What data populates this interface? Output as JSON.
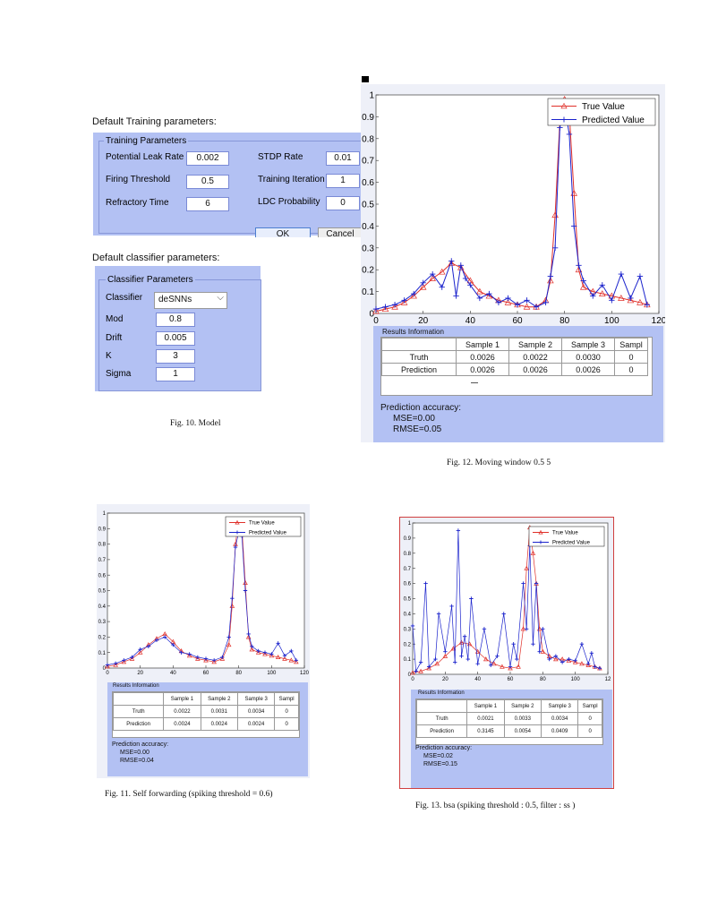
{
  "fig10": {
    "training_header": "Default Training parameters:",
    "training_group": "Training Parameters",
    "fields": [
      {
        "label": "Potential Leak Rate",
        "value": "0.002"
      },
      {
        "label": "Firing Threshold",
        "value": "0.5"
      },
      {
        "label": "Refractory Time",
        "value": "6"
      },
      {
        "label": "STDP Rate",
        "value": "0.01"
      },
      {
        "label": "Training Iteration",
        "value": "1"
      },
      {
        "label": "LDC Probability",
        "value": "0"
      }
    ],
    "ok_label": "OK",
    "cancel_label": "Cancel",
    "classifier_header": "Default classifier parameters:",
    "classifier_group": "Classifier Parameters",
    "classifier_label": "Classifier",
    "classifier_value": "deSNNs",
    "class_fields": [
      {
        "label": "Mod",
        "value": "0.8"
      },
      {
        "label": "Drift",
        "value": "0.005"
      },
      {
        "label": "K",
        "value": "3"
      },
      {
        "label": "Sigma",
        "value": "1"
      }
    ],
    "caption": "Fig. 10.   Model"
  },
  "fig12": {
    "caption": "Fig. 12.   Moving window 0.5 5",
    "results_title": "Results Information",
    "columns": [
      "Sample 1",
      "Sample 2",
      "Sample 3",
      "Sampl"
    ],
    "truth_label": "Truth",
    "prediction_label": "Prediction",
    "truth": [
      "0.0026",
      "0.0022",
      "0.0030",
      "0"
    ],
    "prediction": [
      "0.0026",
      "0.0026",
      "0.0026",
      "0"
    ],
    "accuracy_title": "Prediction accuracy:",
    "mse": "MSE=0.00",
    "rmse": "RMSE=0.05",
    "legend_true": "True Value",
    "legend_pred": "Predicted Value"
  },
  "fig11": {
    "caption": "Fig. 11.   Self forwarding (spiking threshold = 0.6)",
    "results_title": "Results Information",
    "columns": [
      "Sample 1",
      "Sample 2",
      "Sample 3",
      "Sampl"
    ],
    "truth_label": "Truth",
    "prediction_label": "Prediction",
    "truth": [
      "0.0022",
      "0.0031",
      "0.0034",
      "0"
    ],
    "prediction": [
      "0.0024",
      "0.0024",
      "0.0024",
      "0"
    ],
    "accuracy_title": "Prediction accuracy:",
    "mse": "MSE=0.00",
    "rmse": "RMSE=0.04",
    "legend_true": "True Value",
    "legend_pred": "Predicted Value"
  },
  "fig13": {
    "caption": "Fig. 13.   bsa (spiking threshold : 0.5, filter : ss )",
    "results_title": "Results Information",
    "columns": [
      "Sample 1",
      "Sample 2",
      "Sample 3",
      "Sampl"
    ],
    "truth_label": "Truth",
    "prediction_label": "Prediction",
    "truth": [
      "0.0021",
      "0.0033",
      "0.0034",
      "0"
    ],
    "prediction": [
      "0.3145",
      "0.0054",
      "0.0409",
      "0"
    ],
    "accuracy_title": "Prediction accuracy:",
    "mse": "MSE=0.02",
    "rmse": "RMSE=0.15",
    "legend_true": "True Value",
    "legend_pred": "Predicted Value"
  },
  "chart_data": [
    {
      "type": "line",
      "figure": "Fig. 12",
      "xlim": [
        0,
        120
      ],
      "ylim": [
        0,
        1
      ],
      "xticks": [
        "0",
        "20",
        "40",
        "60",
        "80",
        "100",
        "120"
      ],
      "yticks": [
        "0",
        "0.1",
        "0.2",
        "0.3",
        "0.4",
        "0.5",
        "0.6",
        "0.7",
        "0.8",
        "0.9",
        "1"
      ],
      "series": [
        {
          "name": "True Value",
          "color": "#e0302a",
          "marker": "triangle",
          "x": [
            0,
            4,
            8,
            12,
            16,
            20,
            24,
            28,
            32,
            36,
            40,
            44,
            48,
            52,
            56,
            60,
            64,
            68,
            72,
            74,
            76,
            78,
            80,
            82,
            84,
            86,
            88,
            92,
            96,
            100,
            104,
            108,
            112,
            115
          ],
          "y": [
            0.01,
            0.02,
            0.03,
            0.05,
            0.08,
            0.12,
            0.16,
            0.19,
            0.23,
            0.21,
            0.15,
            0.1,
            0.08,
            0.06,
            0.05,
            0.04,
            0.03,
            0.03,
            0.06,
            0.15,
            0.45,
            0.88,
            0.98,
            0.92,
            0.55,
            0.2,
            0.12,
            0.1,
            0.09,
            0.08,
            0.07,
            0.06,
            0.05,
            0.04
          ]
        },
        {
          "name": "Predicted Value",
          "color": "#1a22cc",
          "marker": "star",
          "x": [
            0,
            4,
            8,
            12,
            16,
            20,
            24,
            28,
            32,
            34,
            36,
            38,
            40,
            44,
            48,
            52,
            56,
            60,
            64,
            68,
            72,
            74,
            76,
            78,
            80,
            82,
            84,
            86,
            88,
            92,
            96,
            100,
            104,
            108,
            112,
            115
          ],
          "y": [
            0.02,
            0.03,
            0.04,
            0.06,
            0.09,
            0.14,
            0.18,
            0.12,
            0.24,
            0.08,
            0.22,
            0.16,
            0.13,
            0.07,
            0.09,
            0.05,
            0.07,
            0.04,
            0.06,
            0.03,
            0.05,
            0.17,
            0.3,
            0.85,
            0.95,
            0.82,
            0.4,
            0.22,
            0.15,
            0.08,
            0.13,
            0.06,
            0.18,
            0.07,
            0.17,
            0.04
          ]
        }
      ]
    },
    {
      "type": "line",
      "figure": "Fig. 11",
      "xlim": [
        0,
        120
      ],
      "ylim": [
        0,
        1
      ],
      "xticks": [
        "0",
        "20",
        "40",
        "60",
        "80",
        "100",
        "120"
      ],
      "yticks": [
        "0",
        "0.1",
        "0.2",
        "0.3",
        "0.4",
        "0.5",
        "0.6",
        "0.7",
        "0.8",
        "0.9",
        "1"
      ],
      "series": [
        {
          "name": "True Value",
          "color": "#e0302a",
          "marker": "triangle",
          "x": [
            0,
            5,
            10,
            15,
            20,
            25,
            30,
            35,
            40,
            45,
            50,
            55,
            60,
            65,
            70,
            74,
            76,
            78,
            80,
            82,
            84,
            86,
            88,
            92,
            96,
            100,
            104,
            108,
            112,
            115
          ],
          "y": [
            0.01,
            0.02,
            0.04,
            0.06,
            0.1,
            0.15,
            0.19,
            0.22,
            0.17,
            0.11,
            0.08,
            0.06,
            0.05,
            0.04,
            0.06,
            0.15,
            0.4,
            0.8,
            0.96,
            0.9,
            0.55,
            0.2,
            0.12,
            0.1,
            0.09,
            0.08,
            0.07,
            0.06,
            0.05,
            0.04
          ]
        },
        {
          "name": "Predicted Value",
          "color": "#1a22cc",
          "marker": "star",
          "x": [
            0,
            5,
            10,
            15,
            20,
            25,
            30,
            35,
            40,
            45,
            50,
            55,
            60,
            65,
            70,
            74,
            76,
            78,
            80,
            82,
            84,
            86,
            88,
            92,
            96,
            100,
            104,
            108,
            112,
            115
          ],
          "y": [
            0.02,
            0.03,
            0.05,
            0.07,
            0.12,
            0.14,
            0.18,
            0.2,
            0.15,
            0.1,
            0.09,
            0.07,
            0.06,
            0.05,
            0.07,
            0.2,
            0.45,
            0.78,
            0.88,
            0.85,
            0.5,
            0.22,
            0.14,
            0.11,
            0.1,
            0.09,
            0.16,
            0.08,
            0.11,
            0.05
          ]
        }
      ]
    },
    {
      "type": "line",
      "figure": "Fig. 13",
      "xlim": [
        0,
        120
      ],
      "ylim": [
        0,
        1
      ],
      "xticks": [
        "0",
        "20",
        "40",
        "60",
        "80",
        "100",
        "12"
      ],
      "yticks": [
        "0",
        "0.1",
        "0.2",
        "0.3",
        "0.4",
        "0.5",
        "0.6",
        "0.7",
        "0.8",
        "0.9",
        "1"
      ],
      "series": [
        {
          "name": "True Value",
          "color": "#e0302a",
          "marker": "triangle",
          "x": [
            0,
            5,
            10,
            15,
            20,
            25,
            30,
            35,
            40,
            45,
            50,
            55,
            60,
            65,
            68,
            70,
            72,
            74,
            76,
            78,
            80,
            84,
            88,
            92,
            96,
            100,
            104,
            108,
            112,
            115
          ],
          "y": [
            0.01,
            0.02,
            0.04,
            0.07,
            0.12,
            0.17,
            0.21,
            0.2,
            0.15,
            0.1,
            0.07,
            0.05,
            0.04,
            0.05,
            0.3,
            0.7,
            0.97,
            0.8,
            0.6,
            0.3,
            0.15,
            0.12,
            0.1,
            0.1,
            0.09,
            0.08,
            0.07,
            0.06,
            0.05,
            0.04
          ]
        },
        {
          "name": "Predicted Value",
          "color": "#1a22cc",
          "marker": "star",
          "x": [
            0,
            2,
            5,
            8,
            10,
            14,
            16,
            20,
            24,
            26,
            28,
            30,
            32,
            34,
            36,
            40,
            44,
            48,
            52,
            56,
            60,
            62,
            64,
            68,
            70,
            72,
            74,
            76,
            78,
            80,
            84,
            88,
            92,
            96,
            100,
            104,
            108,
            110,
            112,
            115
          ],
          "y": [
            0.32,
            0.02,
            0.08,
            0.6,
            0.05,
            0.1,
            0.4,
            0.15,
            0.45,
            0.08,
            0.95,
            0.12,
            0.25,
            0.1,
            0.5,
            0.07,
            0.3,
            0.06,
            0.12,
            0.4,
            0.05,
            0.2,
            0.1,
            0.6,
            0.3,
            0.85,
            0.2,
            0.6,
            0.15,
            0.3,
            0.1,
            0.12,
            0.08,
            0.1,
            0.09,
            0.2,
            0.07,
            0.14,
            0.05,
            0.04
          ]
        }
      ]
    }
  ]
}
